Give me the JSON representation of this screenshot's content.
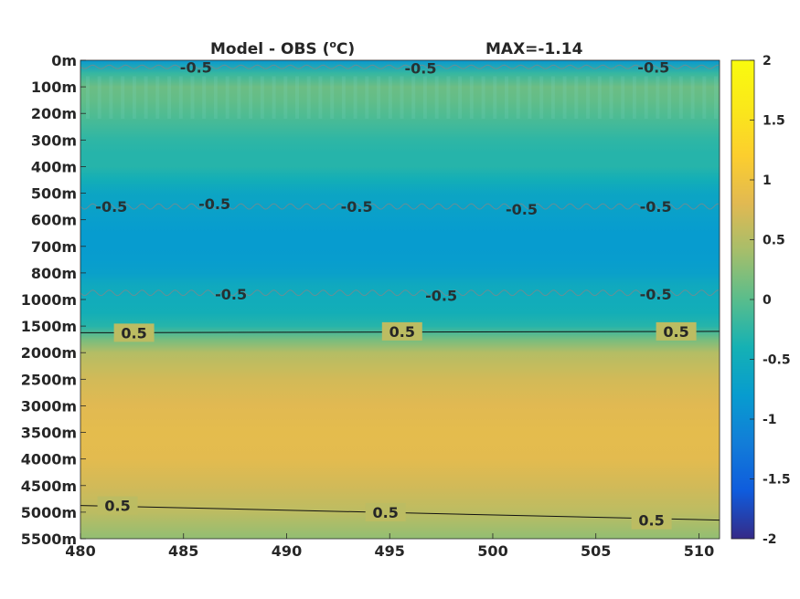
{
  "chart_data": {
    "type": "heatmap",
    "title": "Model - OBS (",
    "title_unit_sup": "o",
    "title_unit_tail": "C)",
    "max_label": "MAX=-1.14",
    "xlim": [
      480,
      511
    ],
    "x_ticks": [
      "480",
      "485",
      "490",
      "495",
      "500",
      "505",
      "510"
    ],
    "x_tick_values": [
      480,
      485,
      490,
      495,
      500,
      505,
      510
    ],
    "y_ticks": [
      "0m",
      "100m",
      "200m",
      "300m",
      "400m",
      "500m",
      "600m",
      "700m",
      "800m",
      "1000m",
      "1500m",
      "2000m",
      "2500m",
      "3000m",
      "3500m",
      "4000m",
      "4500m",
      "5000m",
      "5500m"
    ],
    "y_axis_direction": "reversed (depth increases downward)",
    "colorbar": {
      "colormap": "parula",
      "range": [
        -2,
        2
      ],
      "tick_labels": [
        "2",
        "1.5",
        "1",
        "0.5",
        "0",
        "-0.5",
        "-1",
        "-1.5",
        "-2"
      ],
      "tick_values": [
        2,
        1.5,
        1,
        0.5,
        0,
        -0.5,
        -1,
        -1.5,
        -2
      ]
    },
    "depth_profile": {
      "depth_index": [
        0,
        0.5,
        1,
        1.5,
        2,
        2.5,
        3,
        3.5,
        4,
        4.5,
        5,
        5.5,
        6,
        6.5,
        7,
        7.5,
        8,
        8.5,
        9,
        9.5,
        10,
        10.5,
        11,
        11.5,
        12,
        13,
        14,
        15,
        16,
        17,
        18
      ],
      "values": [
        -0.85,
        -0.2,
        0.1,
        0.05,
        -0.05,
        -0.15,
        -0.25,
        -0.3,
        -0.3,
        -0.45,
        -0.62,
        -0.68,
        -0.75,
        -0.8,
        -0.8,
        -0.78,
        -0.72,
        -0.55,
        -0.5,
        -0.45,
        -0.3,
        0.15,
        0.5,
        0.6,
        0.7,
        0.8,
        0.85,
        0.83,
        0.7,
        0.55,
        0.3
      ]
    },
    "contour_labels_gray": [
      "-0.5",
      "-0.5",
      "-0.5",
      "-0.5",
      "-0.5",
      "-0.5",
      "-0.5",
      "-0.5",
      "-0.5",
      "-0.5",
      "-0.5",
      "-0.5"
    ],
    "contour_labels_black": [
      "0.5",
      "0.5",
      "0.5",
      "0.5",
      "0.5",
      "0.5"
    ],
    "contour_levels": [
      -0.5,
      0.5
    ]
  }
}
